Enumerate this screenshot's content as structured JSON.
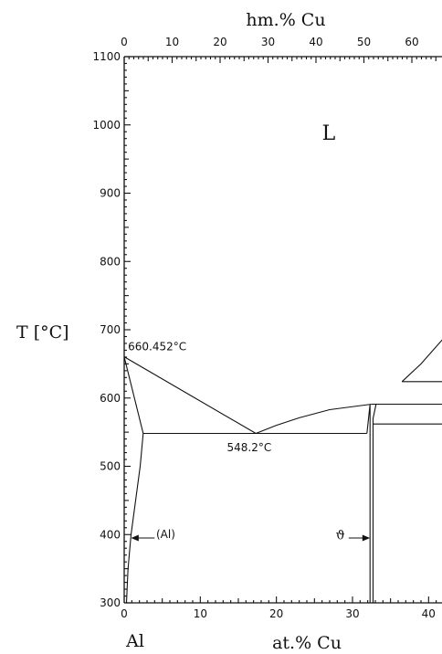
{
  "chart_data": {
    "type": "phase-diagram",
    "title": "",
    "xlabel": "at.% Cu",
    "x2label": "hm.% Cu",
    "ylabel": "T [°C]",
    "xlim": [
      0,
      42
    ],
    "ylim": [
      300,
      1100
    ],
    "x_ticks": [
      0,
      10,
      20,
      30,
      40
    ],
    "x2_ticks": [
      0,
      10,
      20,
      30,
      40,
      50,
      60
    ],
    "y_ticks": [
      300,
      400,
      500,
      600,
      700,
      800,
      900,
      1000,
      1100
    ],
    "x_tick_labels": [
      "0",
      "10",
      "20",
      "30",
      "40"
    ],
    "x2_tick_labels": [
      "0",
      "10",
      "20",
      "30",
      "40",
      "50",
      "60"
    ],
    "y_tick_labels": [
      "300",
      "400",
      "500",
      "600",
      "700",
      "800",
      "900",
      "1000",
      "1100"
    ],
    "element_label": "Al",
    "phase_labels": {
      "liquid": "L",
      "al": "(Al)",
      "theta": "ϑ"
    },
    "annotations": [
      {
        "text": "660.452°C",
        "x": 0,
        "y": 660.452
      },
      {
        "text": "548.2°C",
        "x": 17.3,
        "y": 548.2
      }
    ],
    "curves": {
      "liquidus_al": [
        [
          0,
          660.452
        ],
        [
          17.3,
          548.2
        ]
      ],
      "liquidus_theta": [
        [
          17.3,
          548.2
        ],
        [
          20,
          560
        ],
        [
          23,
          571
        ],
        [
          27,
          583
        ],
        [
          32.5,
          591
        ]
      ],
      "liquidus_high": [
        [
          36.5,
          624
        ],
        [
          39,
          650
        ],
        [
          42,
          688
        ],
        [
          44,
          716
        ]
      ],
      "solidus_al": [
        [
          0,
          660.452
        ],
        [
          2.5,
          548.2
        ]
      ],
      "solvus_al": [
        [
          2.5,
          548.2
        ],
        [
          2.1,
          500
        ],
        [
          1.5,
          450
        ],
        [
          0.9,
          400
        ],
        [
          0.5,
          350
        ],
        [
          0.3,
          300
        ]
      ],
      "eutectic": [
        [
          2.5,
          548.2
        ],
        [
          31.9,
          548.2
        ]
      ],
      "theta_left": [
        [
          31.9,
          548.2
        ],
        [
          32.3,
          591
        ],
        [
          32.3,
          300
        ]
      ],
      "theta_right": [
        [
          33.1,
          591
        ],
        [
          32.7,
          570
        ],
        [
          32.7,
          300
        ]
      ],
      "theta_eta": [
        [
          32.5,
          591
        ],
        [
          42,
          591
        ]
      ],
      "upper_line": [
        [
          36.5,
          624
        ],
        [
          42,
          624
        ]
      ],
      "lower_line": [
        [
          32.7,
          562
        ],
        [
          42,
          562
        ]
      ]
    }
  }
}
